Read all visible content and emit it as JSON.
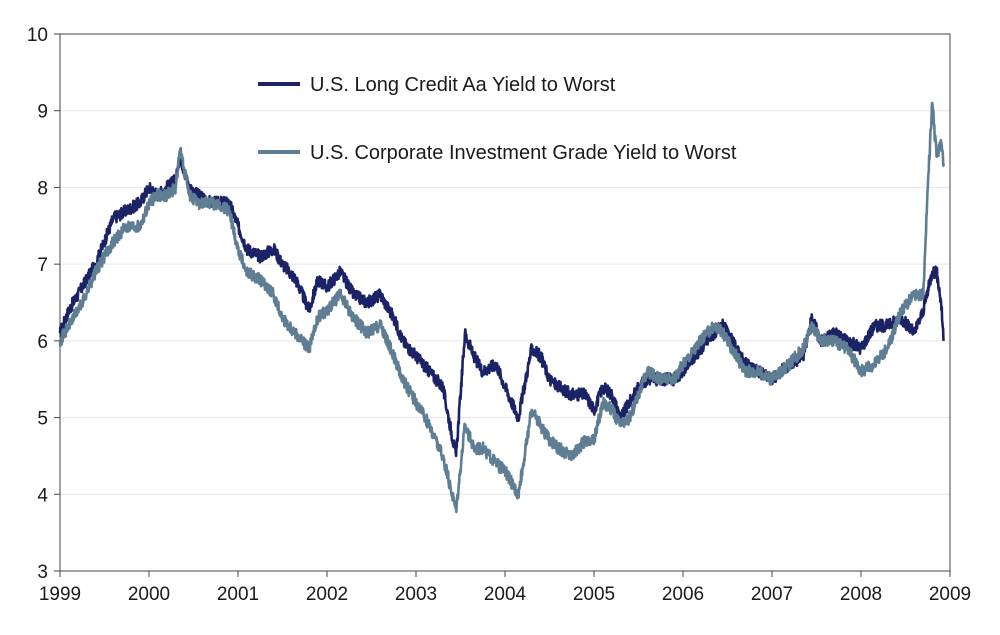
{
  "chart_data": {
    "type": "line",
    "title": "",
    "xlabel": "",
    "ylabel": "",
    "xlim": [
      1999,
      2009
    ],
    "ylim": [
      3,
      10
    ],
    "grid": true,
    "legend_position": "top-center",
    "x_ticks": [
      "1999",
      "2000",
      "2001",
      "2002",
      "2003",
      "2004",
      "2005",
      "2006",
      "2007",
      "2008",
      "2009"
    ],
    "y_ticks": [
      "3",
      "4",
      "5",
      "6",
      "7",
      "8",
      "9",
      "10"
    ],
    "series": [
      {
        "name": "U.S. Long Credit Aa Yield to Worst",
        "color": "#1b2366",
        "x": [
          1999.0,
          1999.1,
          1999.25,
          1999.4,
          1999.5,
          1999.6,
          1999.75,
          1999.9,
          2000.0,
          2000.1,
          2000.2,
          2000.3,
          2000.35,
          2000.45,
          2000.55,
          2000.7,
          2000.9,
          2001.0,
          2001.1,
          2001.25,
          2001.4,
          2001.5,
          2001.65,
          2001.8,
          2001.9,
          2002.0,
          2002.15,
          2002.3,
          2002.45,
          2002.6,
          2002.75,
          2002.85,
          2003.0,
          2003.15,
          2003.3,
          2003.45,
          2003.55,
          2003.65,
          2003.75,
          2003.9,
          2004.0,
          2004.15,
          2004.3,
          2004.4,
          2004.5,
          2004.6,
          2004.75,
          2004.9,
          2005.0,
          2005.1,
          2005.2,
          2005.3,
          2005.4,
          2005.5,
          2005.6,
          2005.75,
          2005.9,
          2006.0,
          2006.2,
          2006.35,
          2006.45,
          2006.55,
          2006.7,
          2006.85,
          2007.0,
          2007.2,
          2007.35,
          2007.45,
          2007.55,
          2007.7,
          2007.85,
          2008.0,
          2008.15,
          2008.3,
          2008.45,
          2008.6,
          2008.7,
          2008.8,
          2008.85,
          2008.9,
          2008.93
        ],
        "values": [
          6.1,
          6.4,
          6.7,
          7.0,
          7.3,
          7.6,
          7.7,
          7.8,
          8.0,
          7.9,
          8.0,
          8.1,
          8.4,
          8.0,
          7.9,
          7.8,
          7.8,
          7.5,
          7.2,
          7.1,
          7.2,
          7.0,
          6.8,
          6.4,
          6.8,
          6.7,
          6.9,
          6.6,
          6.5,
          6.6,
          6.3,
          6.0,
          5.8,
          5.6,
          5.4,
          4.5,
          6.1,
          5.8,
          5.6,
          5.7,
          5.4,
          5.0,
          5.9,
          5.8,
          5.5,
          5.4,
          5.3,
          5.3,
          5.1,
          5.4,
          5.3,
          5.0,
          5.2,
          5.4,
          5.5,
          5.5,
          5.5,
          5.6,
          5.9,
          6.1,
          6.2,
          6.0,
          5.7,
          5.6,
          5.5,
          5.7,
          5.8,
          6.3,
          6.0,
          6.1,
          6.0,
          5.9,
          6.2,
          6.2,
          6.3,
          6.1,
          6.4,
          6.9,
          6.9,
          6.5,
          6.0
        ]
      },
      {
        "name": "U.S. Corporate Investment Grade Yield to Worst",
        "color": "#5f7e94",
        "x": [
          1999.0,
          1999.1,
          1999.25,
          1999.4,
          1999.5,
          1999.6,
          1999.75,
          1999.9,
          2000.0,
          2000.1,
          2000.2,
          2000.3,
          2000.35,
          2000.45,
          2000.55,
          2000.7,
          2000.9,
          2001.0,
          2001.1,
          2001.25,
          2001.4,
          2001.5,
          2001.65,
          2001.8,
          2001.9,
          2002.0,
          2002.15,
          2002.3,
          2002.45,
          2002.6,
          2002.75,
          2002.85,
          2003.0,
          2003.15,
          2003.3,
          2003.45,
          2003.55,
          2003.65,
          2003.75,
          2003.9,
          2004.0,
          2004.15,
          2004.3,
          2004.4,
          2004.5,
          2004.6,
          2004.75,
          2004.9,
          2005.0,
          2005.1,
          2005.2,
          2005.3,
          2005.4,
          2005.5,
          2005.6,
          2005.75,
          2005.9,
          2006.0,
          2006.2,
          2006.35,
          2006.45,
          2006.55,
          2006.7,
          2006.85,
          2007.0,
          2007.2,
          2007.35,
          2007.45,
          2007.55,
          2007.7,
          2007.85,
          2008.0,
          2008.15,
          2008.3,
          2008.45,
          2008.6,
          2008.7,
          2008.75,
          2008.8,
          2008.85,
          2008.9,
          2008.93
        ],
        "values": [
          6.0,
          6.2,
          6.5,
          6.9,
          7.1,
          7.3,
          7.5,
          7.5,
          7.8,
          7.9,
          7.9,
          8.0,
          8.5,
          7.9,
          7.8,
          7.8,
          7.7,
          7.2,
          6.9,
          6.8,
          6.6,
          6.3,
          6.1,
          5.9,
          6.3,
          6.4,
          6.6,
          6.3,
          6.1,
          6.2,
          5.8,
          5.5,
          5.2,
          4.9,
          4.5,
          3.8,
          4.9,
          4.6,
          4.6,
          4.4,
          4.3,
          4.0,
          5.1,
          4.9,
          4.7,
          4.6,
          4.5,
          4.7,
          4.7,
          5.2,
          5.1,
          4.9,
          5.0,
          5.3,
          5.6,
          5.5,
          5.5,
          5.7,
          6.0,
          6.2,
          6.1,
          5.9,
          5.6,
          5.6,
          5.5,
          5.7,
          5.9,
          6.2,
          6.0,
          6.0,
          5.9,
          5.6,
          5.7,
          5.9,
          6.4,
          6.6,
          6.6,
          8.0,
          9.1,
          8.4,
          8.6,
          8.3
        ]
      }
    ]
  }
}
